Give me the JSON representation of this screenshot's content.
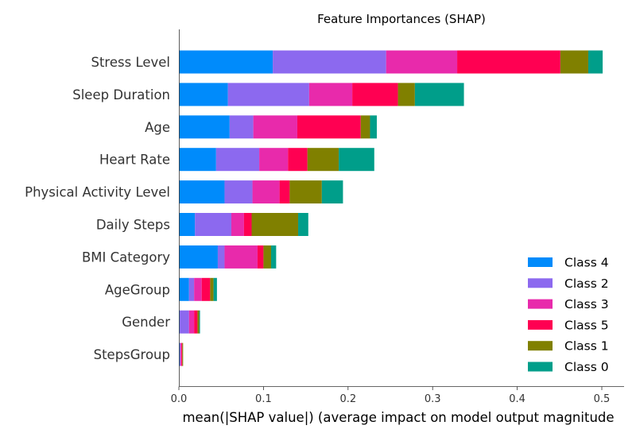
{
  "chart_data": {
    "type": "bar",
    "orientation": "horizontal",
    "stacked": true,
    "title": "Feature Importances (SHAP)",
    "xlabel": "mean(|SHAP value|) (average impact on model output magnitude",
    "ylabel": "",
    "xlim": [
      0,
      0.5
    ],
    "xticks": [
      "0.0",
      "0.1",
      "0.2",
      "0.3",
      "0.4",
      "0.5"
    ],
    "grid": false,
    "legend_position": "bottom-right",
    "categories": [
      "Stress Level",
      "Sleep Duration",
      "Age",
      "Heart Rate",
      "Physical Activity Level",
      "Daily Steps",
      "BMI Category",
      "AgeGroup",
      "Gender",
      "StepsGroup"
    ],
    "series": [
      {
        "name": "Class 4",
        "color": "#008bfb",
        "values": [
          0.111,
          0.058,
          0.06,
          0.044,
          0.054,
          0.019,
          0.046,
          0.012,
          0.001,
          0.001
        ]
      },
      {
        "name": "Class 2",
        "color": "#8c69ef",
        "values": [
          0.134,
          0.096,
          0.028,
          0.051,
          0.033,
          0.043,
          0.008,
          0.006,
          0.011,
          0.001
        ]
      },
      {
        "name": "Class 3",
        "color": "#e82aab",
        "values": [
          0.084,
          0.051,
          0.052,
          0.034,
          0.032,
          0.015,
          0.039,
          0.009,
          0.006,
          0.001
        ]
      },
      {
        "name": "Class 5",
        "color": "#ff0052",
        "values": [
          0.122,
          0.054,
          0.075,
          0.023,
          0.012,
          0.009,
          0.007,
          0.01,
          0.004,
          0.001
        ]
      },
      {
        "name": "Class 1",
        "color": "#808000",
        "values": [
          0.033,
          0.02,
          0.011,
          0.037,
          0.038,
          0.055,
          0.009,
          0.004,
          0.002,
          0.001
        ]
      },
      {
        "name": "Class 0",
        "color": "#009e8a",
        "values": [
          0.017,
          0.058,
          0.008,
          0.042,
          0.025,
          0.012,
          0.006,
          0.004,
          0.001,
          0.0
        ]
      }
    ],
    "legend_order": [
      "Class 4",
      "Class 2",
      "Class 3",
      "Class 5",
      "Class 1",
      "Class 0"
    ]
  }
}
